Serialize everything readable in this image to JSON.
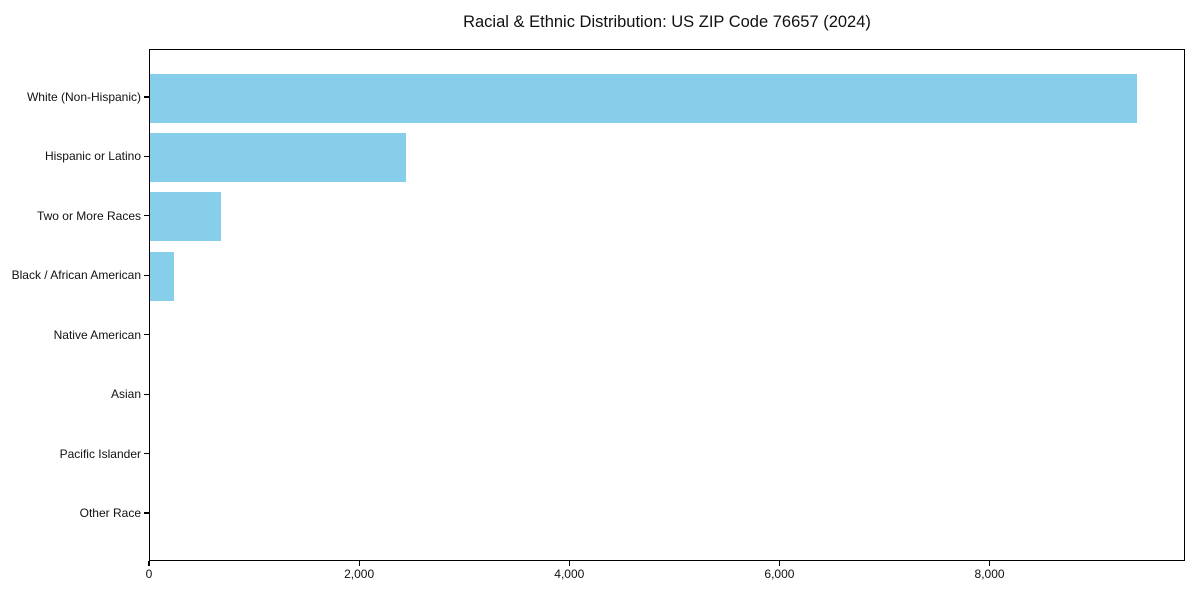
{
  "chart_data": {
    "type": "bar",
    "orientation": "horizontal",
    "title": "Racial & Ethnic Distribution: US ZIP Code 76657 (2024)",
    "categories": [
      "White (Non-Hispanic)",
      "Hispanic or Latino",
      "Two or More Races",
      "Black / African American",
      "Native American",
      "Asian",
      "Pacific Islander",
      "Other Race"
    ],
    "values": [
      9390,
      2440,
      675,
      230,
      0,
      0,
      0,
      0
    ],
    "xlabel": "",
    "ylabel": "",
    "xlim": [
      0,
      9860
    ],
    "xticks": [
      0,
      2000,
      4000,
      6000,
      8000
    ],
    "xtick_labels": [
      "0",
      "2,000",
      "4,000",
      "6,000",
      "8,000"
    ],
    "grid": false,
    "legend": null,
    "bar_color": "#87CEEB",
    "spine_color": "#000000",
    "text_color": "#111111",
    "background_color": "#ffffff"
  }
}
